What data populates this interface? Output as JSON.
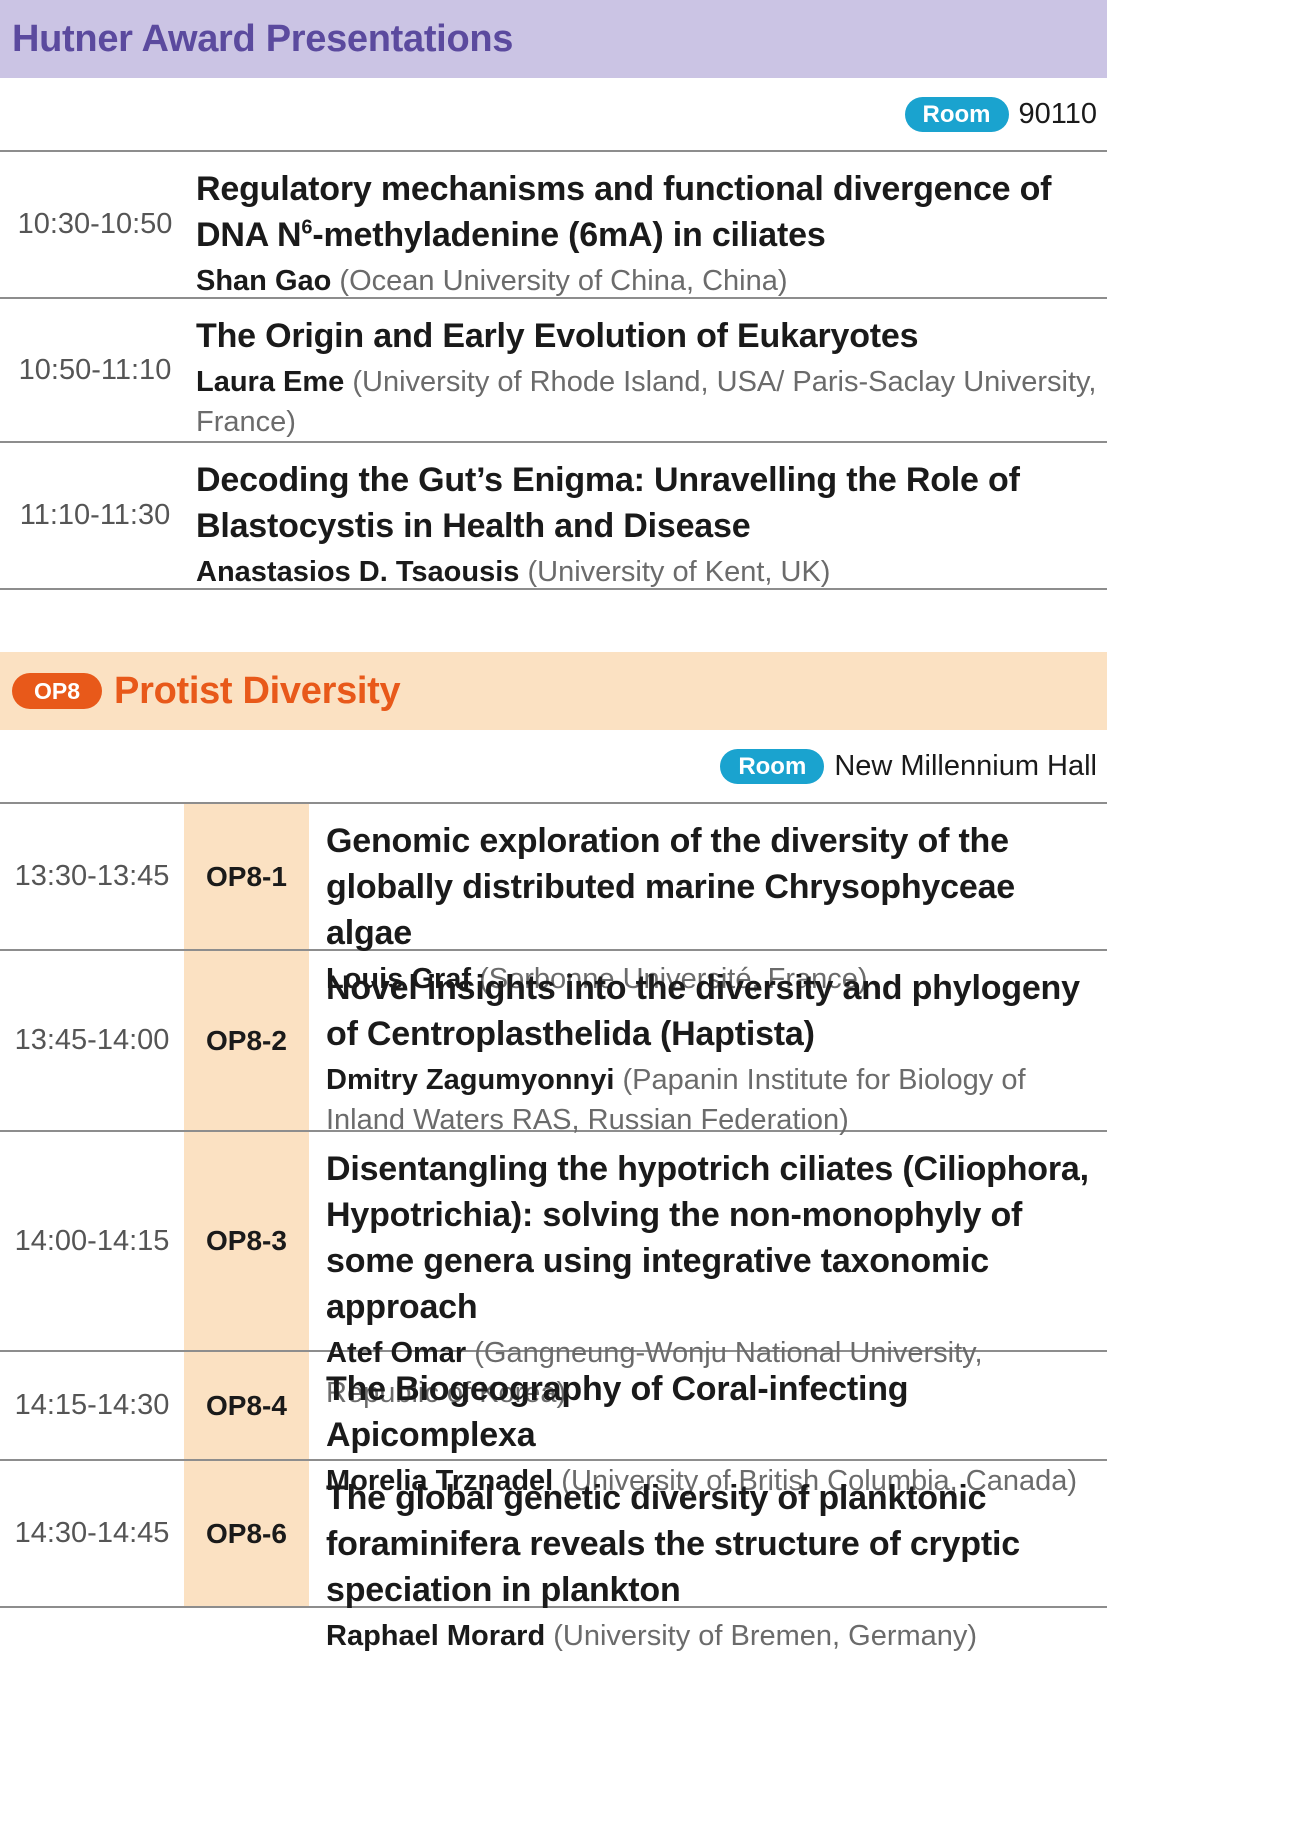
{
  "hutner": {
    "title": "Hutner Award Presentations",
    "room_label": "Room",
    "room": "90110",
    "talks": [
      {
        "time": "10:30-10:50",
        "title_pre": "Regulatory mechanisms and functional divergence of DNA N",
        "title_sup": "6",
        "title_post": "-methyladenine (6mA) in ciliates",
        "speaker": "Shan Gao",
        "affiliation": "(Ocean University of China, China)"
      },
      {
        "time": "10:50-11:10",
        "title": "The Origin and Early Evolution of Eukaryotes",
        "speaker": "Laura Eme",
        "affiliation": "(University of Rhode Island, USA/ Paris-Saclay University, France)"
      },
      {
        "time": "11:10-11:30",
        "title": "Decoding the Gut’s Enigma: Unravelling the Role of Blastocystis in Health and Disease",
        "speaker": "Anastasios D. Tsaousis",
        "affiliation": "(University of Kent, UK)"
      }
    ]
  },
  "op8": {
    "badge": "OP8",
    "title": "Protist Diversity",
    "room_label": "Room",
    "room": "New Millennium Hall",
    "talks": [
      {
        "time": "13:30-13:45",
        "code": "OP8-1",
        "title": "Genomic exploration of the diversity of the globally distributed marine Chrysophyceae algae",
        "speaker": "Louis Graf",
        "affiliation": "(Sorbonne Université, France)"
      },
      {
        "time": "13:45-14:00",
        "code": "OP8-2",
        "title": "Novel insights into the diversity and phylogeny of Centroplasthelida (Haptista)",
        "speaker": "Dmitry Zagumyonnyi",
        "affiliation": "(Papanin Institute for Biology of Inland Waters RAS, Russian Federation)"
      },
      {
        "time": "14:00-14:15",
        "code": "OP8-3",
        "title": "Disentangling the hypotrich ciliates (Ciliophora, Hypotrichia): solving the non-monophyly of some genera using integrative taxonomic approach",
        "speaker": "Atef Omar",
        "affiliation": "(Gangneung-Wonju National University, Republic of Korea)"
      },
      {
        "time": "14:15-14:30",
        "code": "OP8-4",
        "title": "The Biogeography of Coral-infecting Apicomplexa",
        "speaker": "Morelia Trznadel",
        "affiliation": "(University of British Columbia, Canada)"
      },
      {
        "time": "14:30-14:45",
        "code": "OP8-6",
        "title": "The global genetic diversity of planktonic foraminifera reveals the structure of cryptic speciation in plankton",
        "speaker": "Raphael Morard",
        "affiliation": "(University of Bremen, Germany)"
      }
    ]
  }
}
